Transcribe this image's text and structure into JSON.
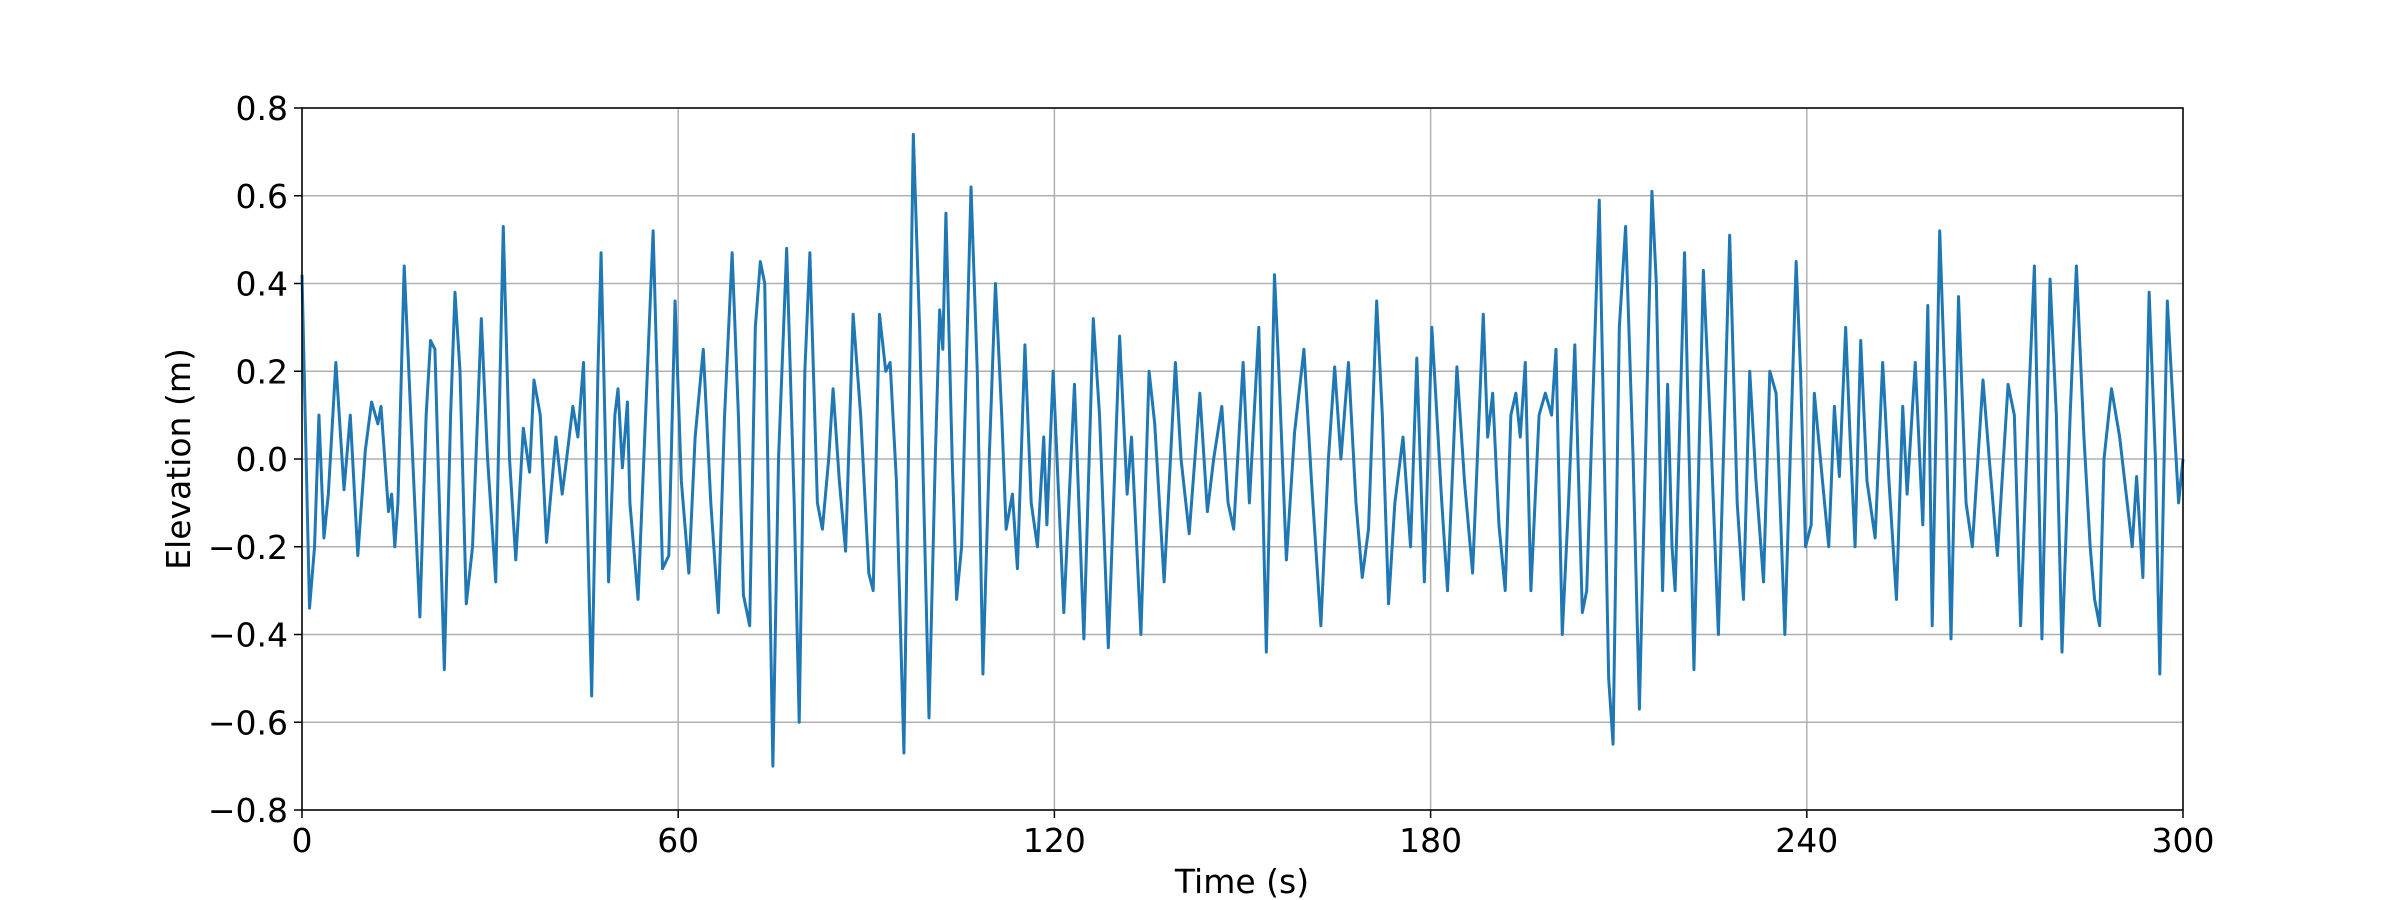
{
  "chart_data": {
    "type": "line",
    "xlabel": "Time (s)",
    "ylabel": "Elevation (m)",
    "xlim": [
      0,
      300
    ],
    "ylim": [
      -0.8,
      0.8
    ],
    "xticks": [
      0,
      60,
      120,
      180,
      240,
      300
    ],
    "yticks": [
      {
        "value": -0.8,
        "label": "−0.8"
      },
      {
        "value": -0.6,
        "label": "−0.6"
      },
      {
        "value": -0.4,
        "label": "−0.4"
      },
      {
        "value": -0.2,
        "label": "−0.2"
      },
      {
        "value": 0,
        "label": "0.0"
      },
      0.2,
      0.4,
      0.6,
      0.8
    ],
    "grid": true,
    "x": [
      0,
      1.2,
      2.0,
      2.7,
      3.5,
      4.2,
      5.4,
      6.7,
      7.7,
      8.9,
      10.1,
      11.1,
      12.1,
      12.6,
      13.8,
      14.3,
      14.8,
      15.3,
      16.3,
      17.5,
      18.8,
      19.8,
      20.5,
      21.2,
      21.7,
      22.7,
      23.7,
      24.4,
      25.2,
      26.2,
      27.2,
      28.6,
      29.6,
      30.9,
      32.1,
      33.1,
      34.1,
      35.3,
      36.3,
      37.0,
      38.0,
      39.0,
      40.5,
      41.5,
      42.2,
      43.2,
      44.0,
      44.9,
      46.2,
      47.2,
      47.7,
      48.9,
      49.9,
      50.4,
      51.1,
      51.9,
      52.3,
      53.6,
      54.8,
      56.0,
      56.8,
      57.5,
      58.5,
      59.5,
      60.5,
      61.7,
      62.7,
      64.0,
      65.2,
      66.4,
      67.4,
      68.6,
      69.6,
      70.4,
      71.4,
      72.3,
      73.1,
      73.8,
      75.1,
      76.0,
      77.3,
      78.5,
      79.3,
      80.2,
      81.0,
      82.2,
      83.0,
      84.0,
      84.7,
      85.7,
      86.7,
      87.9,
      89.1,
      90.4,
      91.1,
      92.1,
      93.1,
      93.8,
      94.8,
      96.0,
      97.5,
      98.5,
      100.0,
      101.0,
      101.7,
      102.2,
      102.7,
      103.7,
      104.4,
      105.2,
      106.7,
      107.7,
      108.6,
      109.6,
      110.6,
      111.6,
      112.3,
      113.3,
      114.1,
      115.3,
      116.3,
      117.3,
      118.3,
      118.8,
      119.8,
      121.5,
      123.2,
      124.7,
      126.2,
      127.2,
      128.6,
      130.4,
      131.6,
      132.3,
      133.8,
      135.1,
      136.0,
      137.5,
      139.3,
      140.2,
      141.5,
      143.2,
      144.4,
      145.4,
      146.7,
      147.7,
      148.6,
      150.1,
      151.1,
      152.6,
      153.8,
      155.1,
      155.8,
      157.0,
      158.3,
      159.8,
      161.0,
      162.5,
      163.7,
      164.7,
      165.7,
      166.9,
      168.1,
      169.1,
      170.1,
      171.4,
      172.3,
      173.3,
      174.3,
      175.6,
      176.8,
      177.8,
      179.0,
      180.2,
      181.2,
      181.7,
      182.7,
      184.2,
      185.4,
      186.7,
      188.4,
      189.1,
      189.9,
      190.9,
      191.9,
      192.8,
      193.6,
      194.3,
      195.1,
      196.0,
      197.3,
      198.3,
      199.3,
      200.0,
      201.0,
      202.0,
      203.0,
      204.2,
      204.9,
      206.9,
      208.4,
      209.1,
      210.1,
      211.1,
      212.3,
      213.3,
      214.6,
      215.3,
      216.0,
      217.0,
      217.8,
      218.5,
      219.0,
      220.5,
      222.0,
      223.5,
      224.7,
      225.9,
      227.7,
      228.9,
      229.9,
      230.9,
      231.9,
      233.1,
      234.1,
      235.1,
      236.5,
      238.3,
      239.0,
      239.8,
      240.7,
      241.2,
      242.5,
      243.5,
      244.4,
      245.2,
      246.2,
      246.9,
      247.7,
      248.6,
      249.6,
      250.9,
      252.1,
      253.1,
      254.3,
      255.3,
      256.0,
      257.3,
      258.5,
      259.3,
      260.0,
      261.2,
      262.2,
      263.0,
      264.2,
      265.4,
      266.4,
      268.1,
      269.1,
      270.4,
      272.1,
      273.1,
      274.1,
      275.3,
      276.3,
      277.5,
      278.8,
      279.8,
      280.7,
      282.0,
      283.0,
      284.2,
      285.2,
      285.9,
      286.7,
      287.4,
      288.6,
      289.9,
      291.1,
      291.9,
      292.6,
      293.6,
      294.6,
      295.6,
      296.3,
      297.5,
      298.5,
      299.3,
      300
    ],
    "series": [
      {
        "color": "#1f77b4",
        "values": [
          0.42,
          -0.34,
          -0.2,
          0.1,
          -0.18,
          -0.08,
          0.22,
          -0.07,
          0.1,
          -0.22,
          0.02,
          0.13,
          0.08,
          0.12,
          -0.12,
          -0.08,
          -0.2,
          -0.1,
          0.44,
          0.05,
          -0.36,
          0.1,
          0.27,
          0.25,
          0.0,
          -0.48,
          0.1,
          0.38,
          0.2,
          -0.33,
          -0.2,
          0.32,
          0.0,
          -0.28,
          0.53,
          0.0,
          -0.23,
          0.07,
          -0.03,
          0.18,
          0.1,
          -0.19,
          0.05,
          -0.08,
          0.0,
          0.12,
          0.05,
          0.22,
          -0.54,
          0.2,
          0.47,
          -0.28,
          0.1,
          0.16,
          -0.02,
          0.13,
          -0.1,
          -0.32,
          0.1,
          0.52,
          0.1,
          -0.25,
          -0.22,
          0.36,
          -0.05,
          -0.26,
          0.05,
          0.25,
          -0.1,
          -0.35,
          0.1,
          0.47,
          0.1,
          -0.31,
          -0.38,
          0.3,
          0.45,
          0.4,
          -0.7,
          0.0,
          0.48,
          -0.1,
          -0.6,
          0.2,
          0.47,
          -0.1,
          -0.16,
          0.0,
          0.16,
          -0.05,
          -0.21,
          0.33,
          0.1,
          -0.26,
          -0.3,
          0.33,
          0.2,
          0.22,
          -0.05,
          -0.67,
          0.74,
          0.3,
          -0.59,
          0.0,
          0.34,
          0.25,
          0.56,
          0.0,
          -0.32,
          -0.2,
          0.62,
          0.2,
          -0.49,
          0.0,
          0.4,
          0.1,
          -0.16,
          -0.08,
          -0.25,
          0.26,
          -0.1,
          -0.2,
          0.05,
          -0.15,
          0.2,
          -0.35,
          0.17,
          -0.41,
          0.32,
          0.1,
          -0.43,
          0.28,
          -0.08,
          0.05,
          -0.4,
          0.2,
          0.08,
          -0.28,
          0.22,
          0.0,
          -0.17,
          0.15,
          -0.12,
          0.0,
          0.12,
          -0.1,
          -0.16,
          0.22,
          -0.1,
          0.3,
          -0.44,
          0.42,
          0.2,
          -0.23,
          0.06,
          0.25,
          -0.05,
          -0.38,
          0.0,
          0.21,
          0.0,
          0.22,
          -0.1,
          -0.27,
          -0.16,
          0.36,
          0.1,
          -0.33,
          -0.1,
          0.05,
          -0.2,
          0.23,
          -0.28,
          0.3,
          0.05,
          -0.08,
          -0.3,
          0.21,
          -0.05,
          -0.26,
          0.33,
          0.05,
          0.15,
          -0.15,
          -0.3,
          0.1,
          0.15,
          0.05,
          0.22,
          -0.3,
          0.1,
          0.15,
          0.1,
          0.25,
          -0.4,
          -0.1,
          0.26,
          -0.35,
          -0.3,
          0.59,
          -0.5,
          -0.65,
          0.3,
          0.53,
          0.0,
          -0.57,
          0.2,
          0.61,
          0.4,
          -0.3,
          0.17,
          -0.2,
          -0.3,
          0.47,
          -0.48,
          0.43,
          0.05,
          -0.4,
          0.51,
          -0.1,
          -0.32,
          0.2,
          -0.05,
          -0.28,
          0.2,
          0.15,
          -0.4,
          0.45,
          0.2,
          -0.2,
          -0.15,
          0.15,
          -0.05,
          -0.2,
          0.12,
          -0.04,
          0.3,
          0.05,
          -0.2,
          0.27,
          -0.05,
          -0.18,
          0.22,
          -0.05,
          -0.32,
          0.12,
          -0.08,
          0.22,
          -0.15,
          0.35,
          -0.38,
          0.52,
          0.1,
          -0.41,
          0.37,
          -0.1,
          -0.2,
          0.18,
          0.0,
          -0.22,
          0.17,
          0.1,
          -0.38,
          0.1,
          0.44,
          -0.41,
          0.41,
          0.1,
          -0.44,
          0.1,
          0.44,
          0.05,
          -0.2,
          -0.32,
          -0.38,
          0.0,
          0.16,
          0.05,
          -0.1,
          -0.2,
          -0.04,
          -0.27,
          0.38,
          0.0,
          -0.49,
          0.36,
          0.1,
          -0.1,
          0.0
        ]
      }
    ]
  }
}
